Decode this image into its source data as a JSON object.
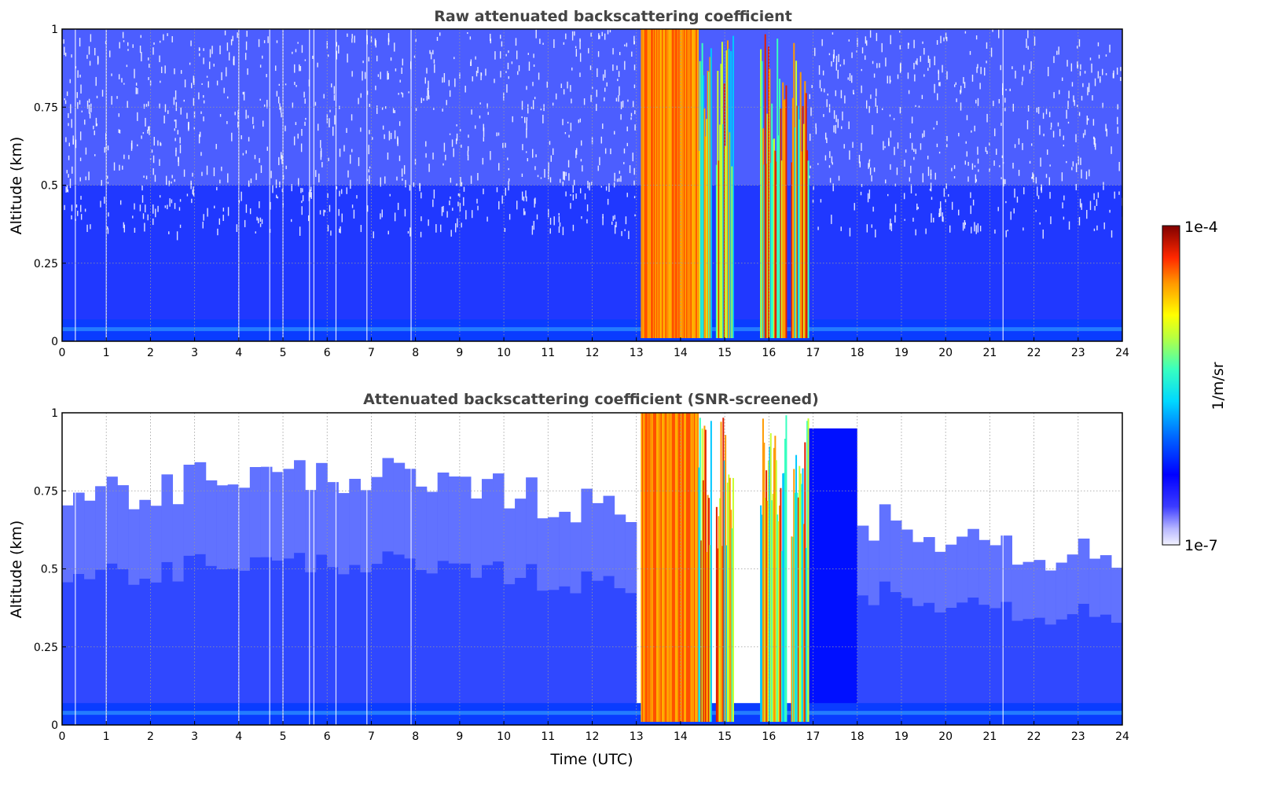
{
  "chart_data": [
    {
      "type": "heatmap",
      "title": "Raw attenuated backscattering coefficient",
      "xlabel": "",
      "ylabel": "Altitude (km)",
      "xlim": [
        0,
        24
      ],
      "ylim": [
        0,
        1
      ],
      "xticks": [
        "0",
        "1",
        "2",
        "3",
        "4",
        "5",
        "6",
        "7",
        "8",
        "9",
        "10",
        "11",
        "12",
        "13",
        "14",
        "15",
        "16",
        "17",
        "18",
        "19",
        "20",
        "21",
        "22",
        "23",
        "24"
      ],
      "yticks": [
        "0",
        "0.25",
        "0.5",
        "0.75",
        "1"
      ],
      "grid": true,
      "features": {
        "cloud_events_utc": [
          [
            13.1,
            14.4
          ],
          [
            14.4,
            14.7
          ],
          [
            14.8,
            15.2
          ],
          [
            15.8,
            16.4
          ],
          [
            16.5,
            16.9
          ]
        ],
        "cloud_base_km": 0.0,
        "strong_return_top_km": 1.0,
        "gap_times_utc": [
          0.3,
          1.0,
          4.0,
          4.7,
          5.0,
          5.6,
          5.7,
          6.2,
          6.9,
          7.9,
          21.3
        ]
      }
    },
    {
      "type": "heatmap",
      "title": "Attenuated backscattering coefficient (SNR-screened)",
      "xlabel": "Time (UTC)",
      "ylabel": "Altitude (km)",
      "xlim": [
        0,
        24
      ],
      "ylim": [
        0,
        1
      ],
      "xticks": [
        "0",
        "1",
        "2",
        "3",
        "4",
        "5",
        "6",
        "7",
        "8",
        "9",
        "10",
        "11",
        "12",
        "13",
        "14",
        "15",
        "16",
        "17",
        "18",
        "19",
        "20",
        "21",
        "22",
        "23",
        "24"
      ],
      "yticks": [
        "0",
        "0.25",
        "0.5",
        "0.75",
        "1"
      ],
      "grid": true,
      "features": {
        "cloud_events_utc": [
          [
            13.1,
            14.4
          ],
          [
            14.4,
            14.7
          ],
          [
            14.8,
            15.2
          ],
          [
            15.8,
            16.4
          ],
          [
            16.5,
            16.9
          ]
        ],
        "screened_top_km_example": [
          0.75,
          0.8,
          0.8,
          0.75,
          0.7,
          0.7,
          0.65,
          0.6,
          0.55
        ]
      }
    }
  ],
  "colorbar": {
    "label": "1/m/sr",
    "max_label": "1e-4",
    "min_label": "1e-7",
    "scale": "log",
    "range": [
      1e-07,
      0.0001
    ],
    "colormap": "jet"
  }
}
